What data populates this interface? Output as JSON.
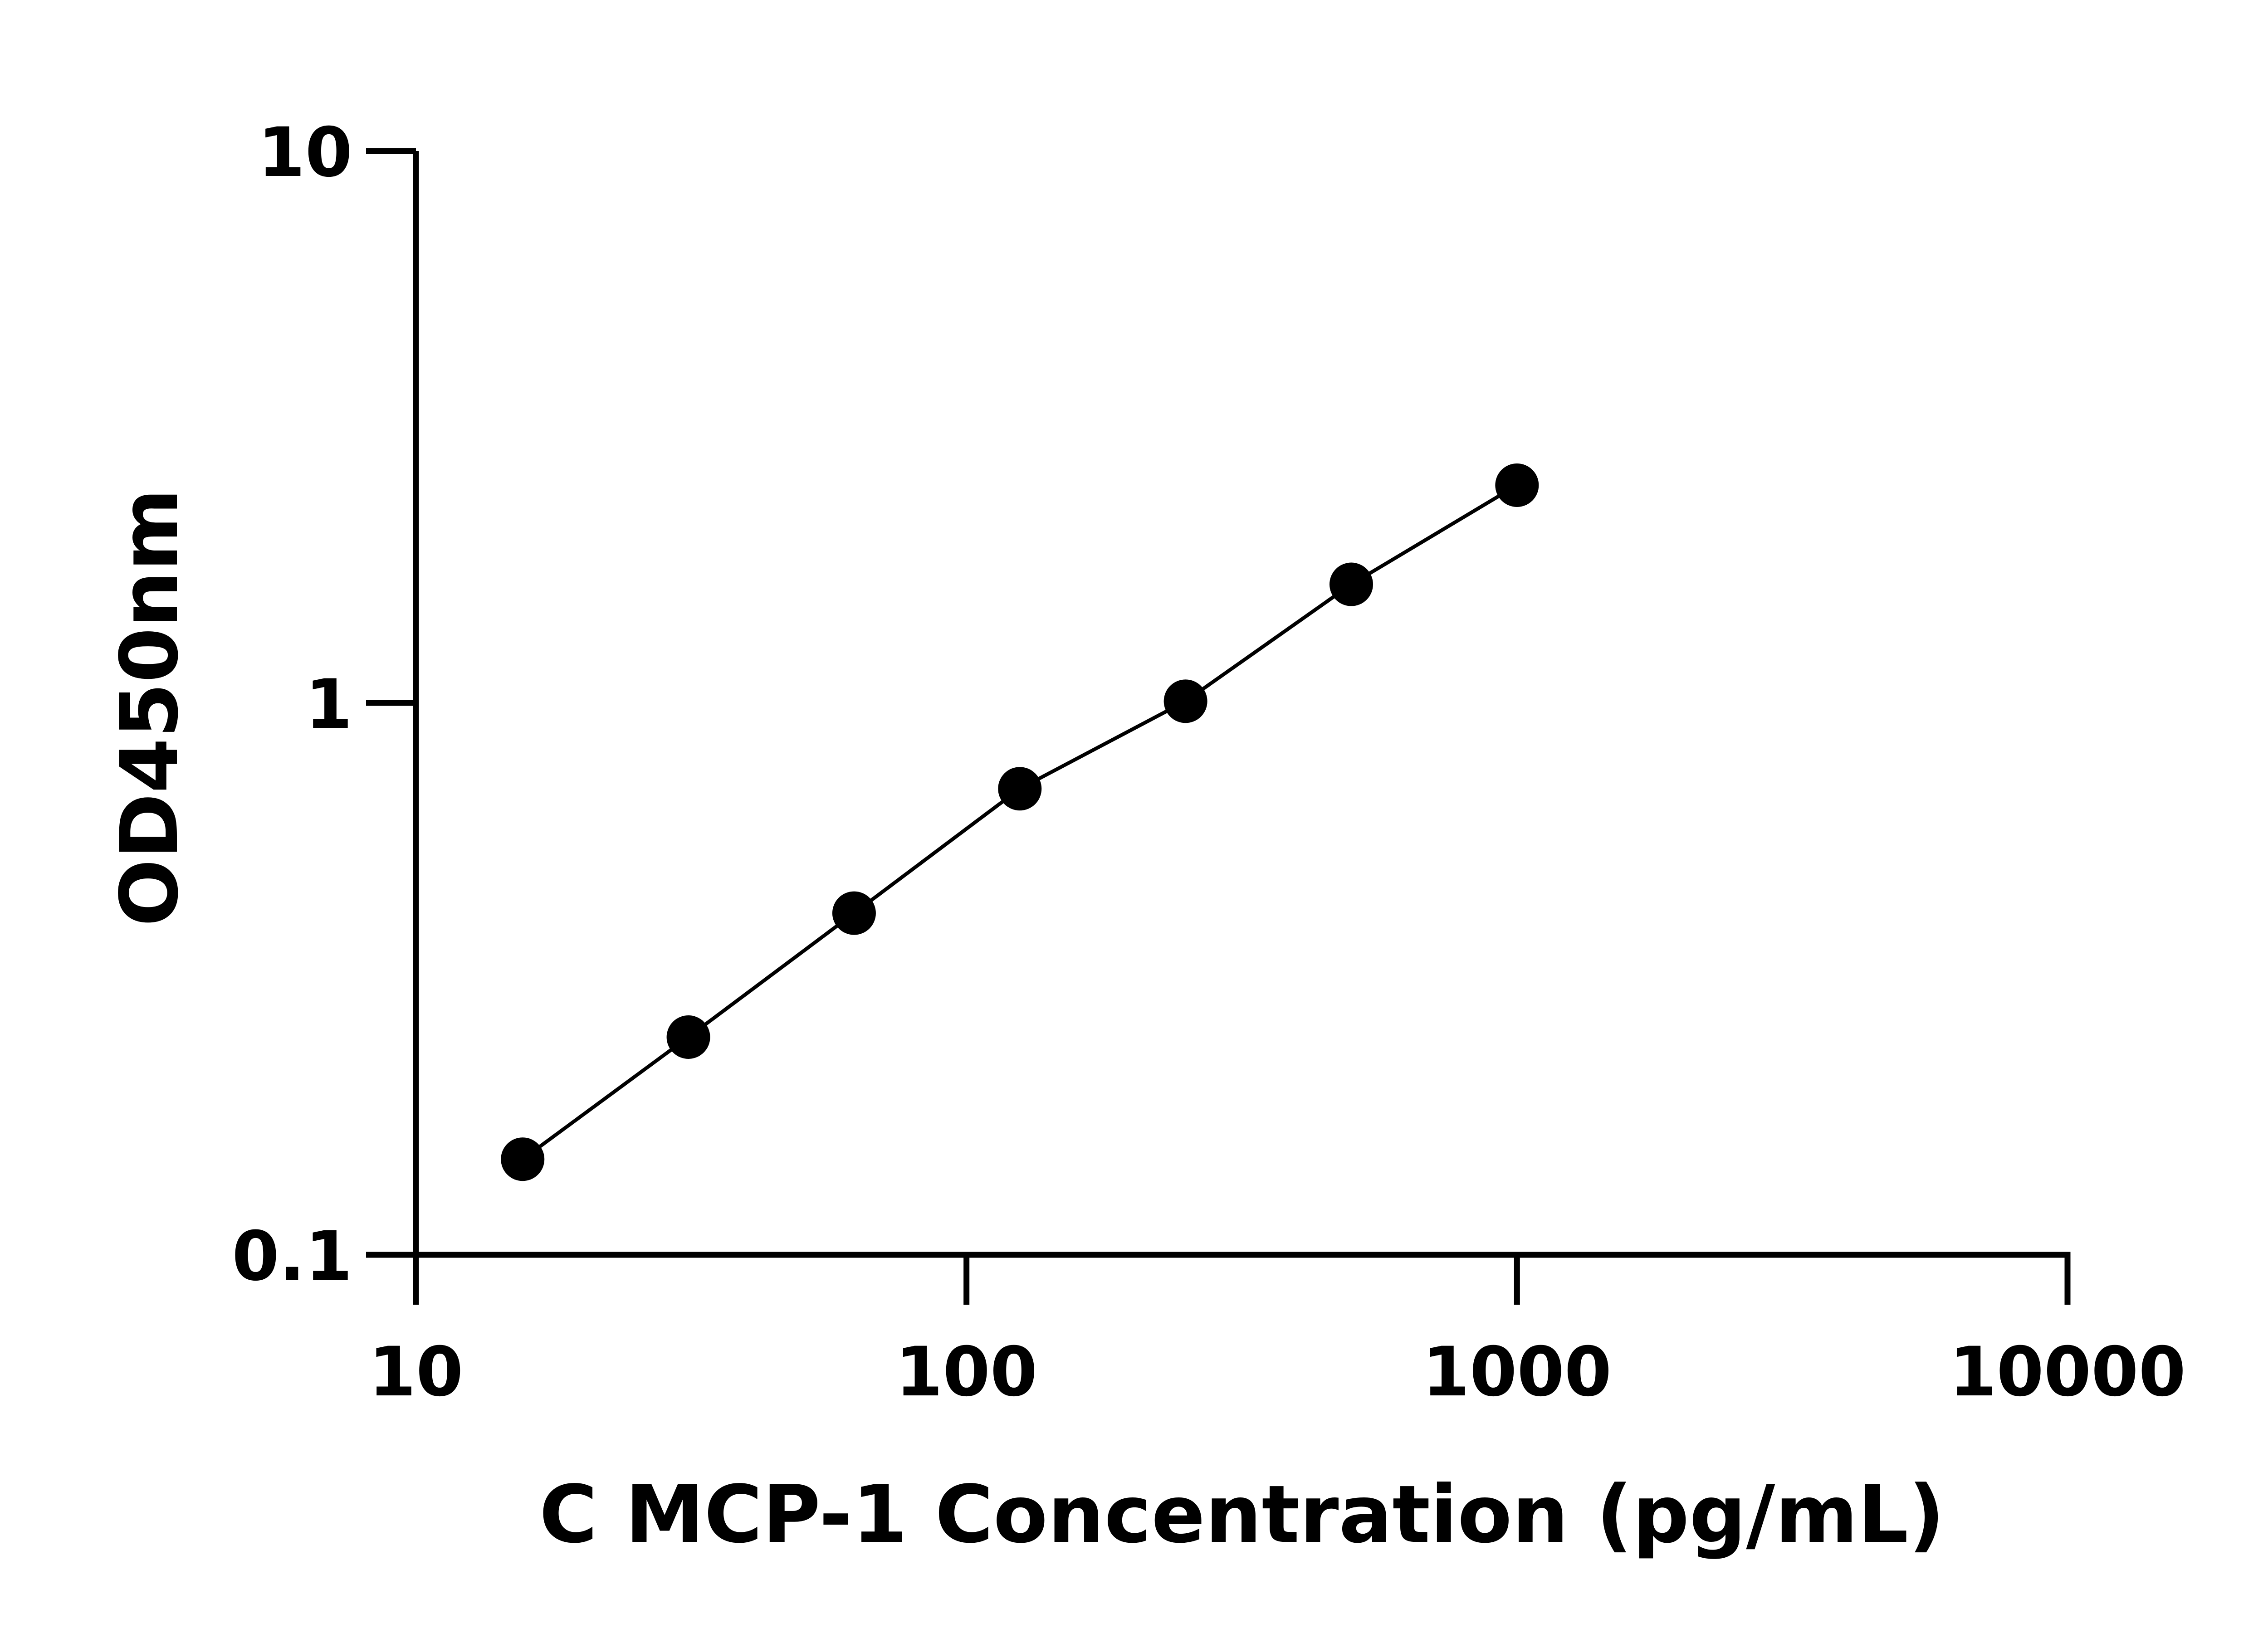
{
  "chart_data": {
    "type": "scatter",
    "title": "",
    "xlabel": "C MCP-1 Concentration (pg/mL)",
    "ylabel": "OD450nm",
    "x_scale": "log",
    "y_scale": "log",
    "xlim": [
      10,
      10000
    ],
    "ylim": [
      0.1,
      10
    ],
    "x_ticks": [
      "10",
      "100",
      "1000",
      "10000"
    ],
    "y_ticks": [
      "0.1",
      "1",
      "10"
    ],
    "grid": false,
    "legend": "none",
    "series": [
      {
        "x": [
          15.625,
          31.25,
          62.5,
          125,
          250,
          500,
          1000
        ],
        "y": [
          0.149,
          0.248,
          0.416,
          0.699,
          1.007,
          1.64,
          2.48
        ],
        "marker": "circle",
        "color": "#000000",
        "fit_line": true
      }
    ]
  }
}
